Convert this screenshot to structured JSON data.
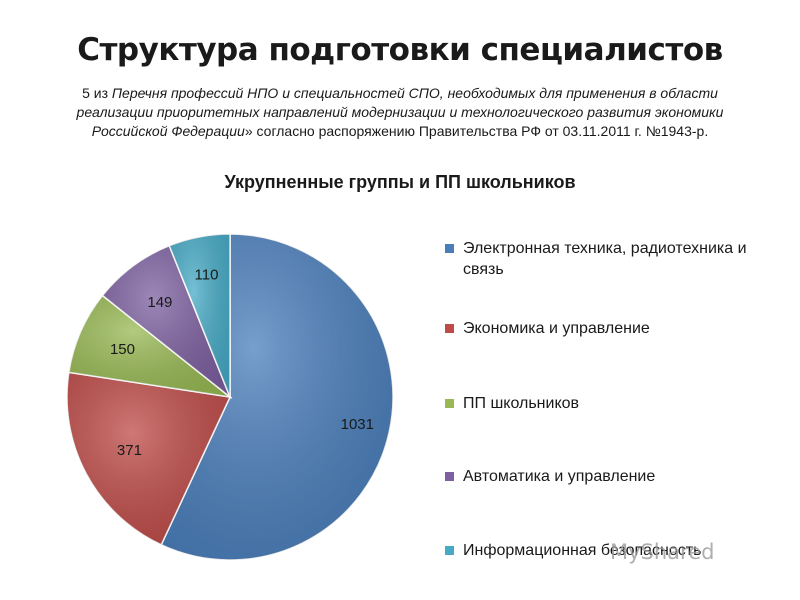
{
  "slide": {
    "title": "Структура подготовки специалистов",
    "subtitle_prefix": "5 из ",
    "subtitle_italic": "Перечня профессий НПО и специальностей СПО, необходимых для применения в области реализации приоритетных направлений модернизации и технологического развития экономики Российской Федерации",
    "subtitle_suffix": "» согласно распоряжению Правительства РФ от 03.11.2011 г. №1943-р.",
    "watermark": "MyShared"
  },
  "chart_data": {
    "type": "pie",
    "title": "Укрупненные группы и ПП школьников",
    "categories": [
      "Электронная техника, радиотехника и связь",
      "Экономика и управление",
      "ПП школьников",
      "Автоматика и управление",
      "Информационная безопасность"
    ],
    "values": [
      1031,
      371,
      150,
      149,
      110
    ],
    "data_labels": [
      "1031",
      "371",
      "150",
      "149",
      "110"
    ],
    "colors": [
      "#4a7ebb",
      "#be4b48",
      "#98b954",
      "#7d60a0",
      "#46aac5"
    ],
    "legend_position": "right"
  }
}
